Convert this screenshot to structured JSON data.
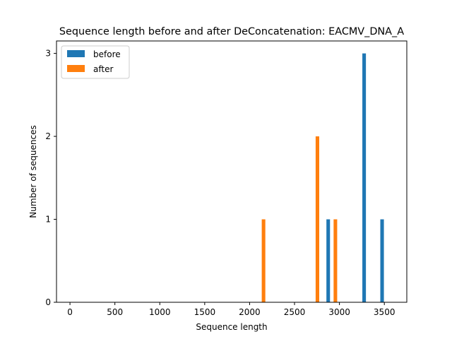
{
  "chart_data": {
    "type": "bar",
    "title": "Sequence length before and after DeConcatenation: EACMV_DNA_A",
    "xlabel": "Sequence length",
    "ylabel": "Number of sequences",
    "xlim": [
      -150,
      3750
    ],
    "ylim": [
      0,
      3.15
    ],
    "xticks": [
      0,
      500,
      1000,
      1500,
      2000,
      2500,
      3000,
      3500
    ],
    "yticks": [
      0,
      1,
      2,
      3
    ],
    "bar_width": 40,
    "legend_position": "top-left",
    "grid": false,
    "series": [
      {
        "name": "before",
        "color": "#1f77b4",
        "bars": [
          {
            "x": 2875,
            "value": 1
          },
          {
            "x": 3275,
            "value": 3
          },
          {
            "x": 3475,
            "value": 1
          }
        ]
      },
      {
        "name": "after",
        "color": "#ff7f0e",
        "bars": [
          {
            "x": 2155,
            "value": 1
          },
          {
            "x": 2755,
            "value": 2
          },
          {
            "x": 2955,
            "value": 1
          }
        ]
      }
    ]
  }
}
